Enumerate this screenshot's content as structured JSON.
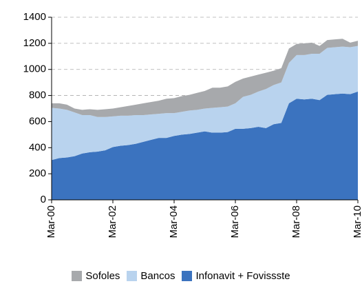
{
  "chart_data": {
    "type": "stacked-area",
    "categories": [
      "Mar-00",
      null,
      null,
      null,
      null,
      null,
      null,
      null,
      "Mar-02",
      null,
      null,
      null,
      null,
      null,
      null,
      null,
      "Mar-04",
      null,
      null,
      null,
      null,
      null,
      null,
      null,
      "Mar-06",
      null,
      null,
      null,
      null,
      null,
      null,
      null,
      "Mar-08",
      null,
      null,
      null,
      null,
      null,
      null,
      null,
      "Mar-10"
    ],
    "series": [
      {
        "name": "Sofoles",
        "color": "#a7a9ac",
        "values": [
          35,
          40,
          40,
          30,
          40,
          45,
          55,
          60,
          60,
          65,
          75,
          80,
          90,
          95,
          100,
          110,
          115,
          120,
          120,
          130,
          135,
          155,
          150,
          155,
          165,
          140,
          140,
          130,
          125,
          110,
          110,
          110,
          85,
          90,
          85,
          60,
          60,
          60,
          60,
          35,
          40
        ]
      },
      {
        "name": "Bancos",
        "color": "#b9d3ee",
        "values": [
          400,
          380,
          365,
          335,
          295,
          285,
          265,
          255,
          235,
          230,
          225,
          220,
          205,
          195,
          185,
          190,
          175,
          175,
          180,
          175,
          175,
          190,
          195,
          195,
          195,
          245,
          255,
          270,
          300,
          300,
          310,
          310,
          335,
          340,
          345,
          355,
          360,
          360,
          360,
          360,
          350
        ]
      },
      {
        "name": "Infonavit + Fovissste",
        "color": "#3b73bf",
        "values": [
          305,
          320,
          325,
          335,
          355,
          365,
          370,
          380,
          405,
          415,
          420,
          430,
          445,
          460,
          475,
          475,
          490,
          500,
          505,
          515,
          525,
          515,
          515,
          520,
          545,
          545,
          550,
          560,
          550,
          580,
          590,
          740,
          775,
          770,
          775,
          765,
          805,
          810,
          815,
          810,
          830
        ]
      }
    ],
    "ylim": [
      0,
      1400
    ],
    "yticks": [
      0,
      200,
      400,
      600,
      800,
      1000,
      1200,
      1400
    ],
    "grid": true
  }
}
